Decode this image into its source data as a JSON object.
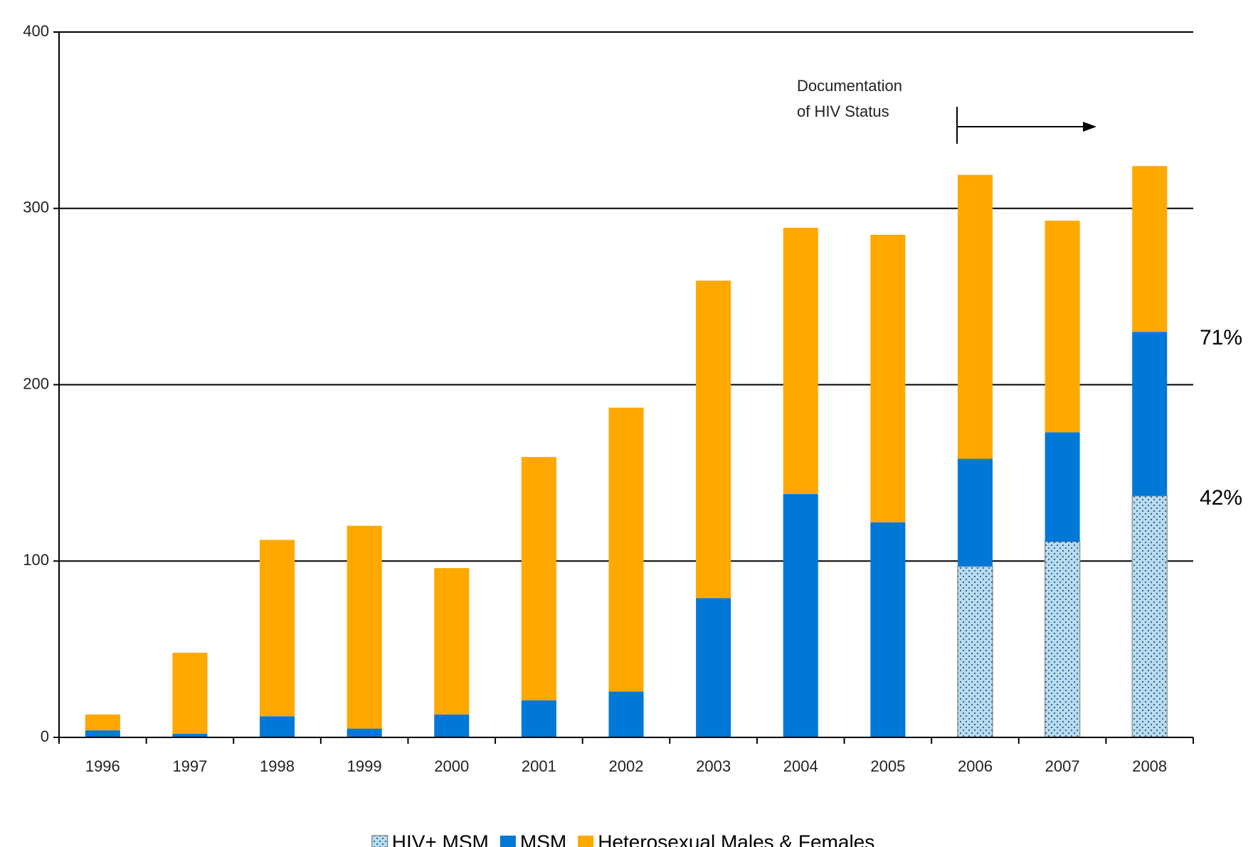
{
  "chart_data": {
    "type": "bar",
    "stacked": true,
    "categories": [
      "1996",
      "1997",
      "1998",
      "1999",
      "2000",
      "2001",
      "2002",
      "2003",
      "2004",
      "2005",
      "2006",
      "2007",
      "2008"
    ],
    "series": [
      {
        "name": "HIV+ MSM",
        "color": "#b3dcf7",
        "pattern": "dots",
        "values": [
          null,
          null,
          null,
          null,
          null,
          null,
          null,
          null,
          null,
          null,
          97,
          111,
          137
        ]
      },
      {
        "name": "MSM",
        "color": "#0078d7",
        "values": [
          4,
          2,
          12,
          5,
          13,
          21,
          26,
          79,
          138,
          122,
          61,
          62,
          93
        ]
      },
      {
        "name": "Heterosexual Males & Females",
        "color": "#ffa800",
        "values": [
          9,
          46,
          100,
          115,
          83,
          138,
          161,
          180,
          151,
          163,
          161,
          120,
          94
        ]
      }
    ],
    "ylim": [
      0,
      400
    ],
    "yticks": [
      0,
      100,
      200,
      300,
      400
    ],
    "grid": true,
    "legend": "bottom",
    "annotation": [
      "Documentation",
      "of HIV Status"
    ],
    "side_labels": [
      "71%",
      "42%"
    ]
  }
}
